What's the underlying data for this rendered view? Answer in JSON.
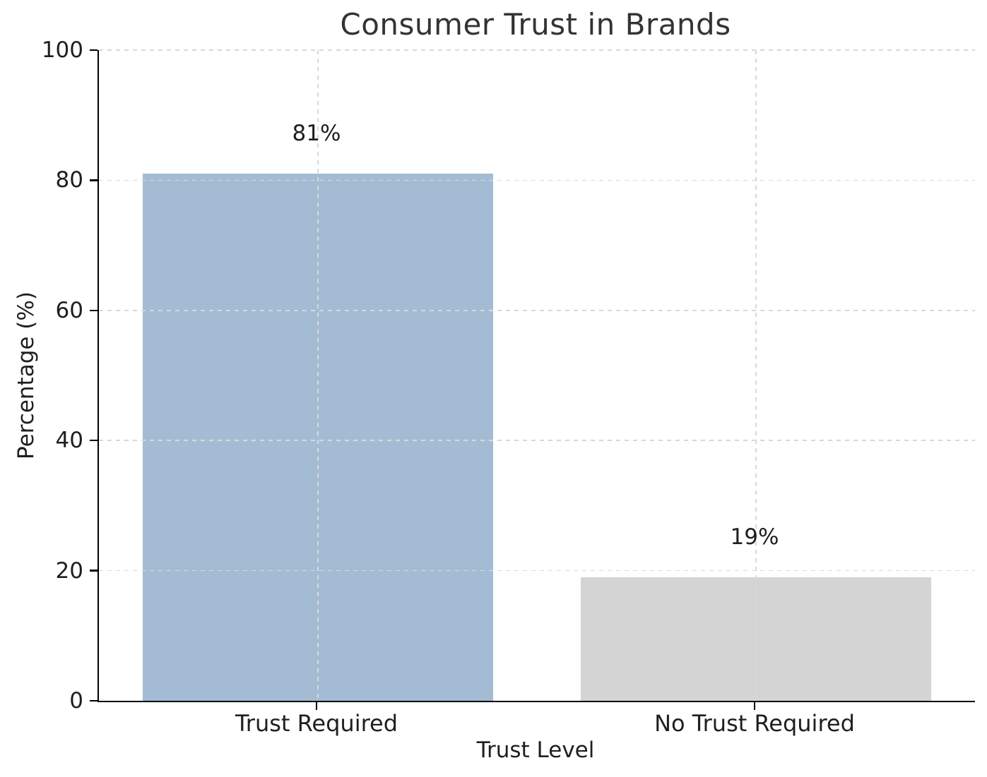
{
  "figure": {
    "background_color": "#ffffff",
    "axis_color": "#000000",
    "title_color": "#333333",
    "text_color": "#1f1f1f",
    "grid_color": "#d9d9d9"
  },
  "chart_data": {
    "type": "bar",
    "title": "Consumer Trust in Brands",
    "xlabel": "Trust Level",
    "ylabel": "Percentage (%)",
    "categories": [
      "Trust Required",
      "No Trust Required"
    ],
    "values": [
      81,
      19
    ],
    "value_labels": [
      "81%",
      "19%"
    ],
    "bar_colors": [
      "#a3bcd4",
      "#d4d4d4"
    ],
    "ylim": [
      0,
      100
    ],
    "yticks": [
      0,
      20,
      40,
      60,
      80,
      100
    ],
    "grid": {
      "visible": true,
      "line_style": "dashed",
      "horizontal_at": [
        20,
        40,
        60,
        80,
        100
      ],
      "vertical_at_category_centers": true,
      "drawn_above_bars": true
    },
    "legend": "none",
    "spines_visible": [
      "left",
      "bottom"
    ]
  }
}
